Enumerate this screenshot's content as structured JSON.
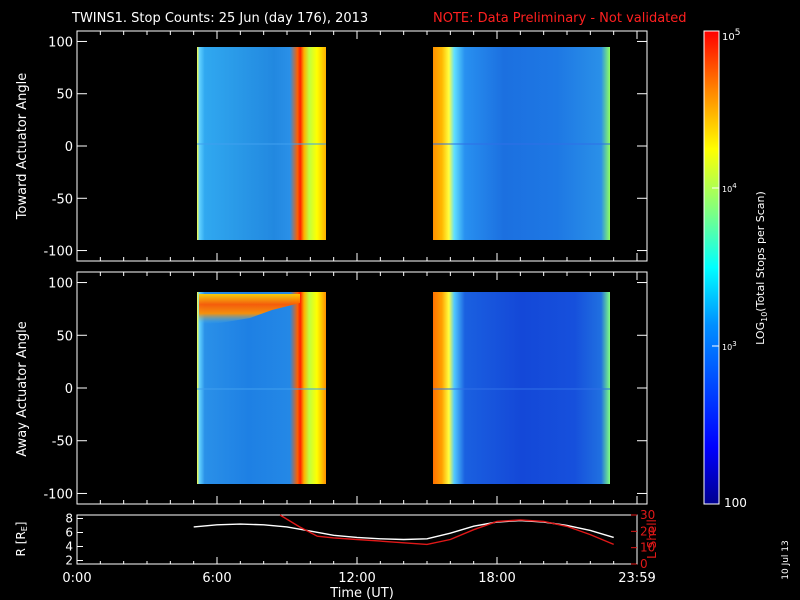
{
  "title": "TWINS1. Stop Counts: 25 Jun (day 176), 2013",
  "note": "NOTE: Data Preliminary - Not validated",
  "stamp": "10 Jul 13",
  "colors": {
    "note": "#ff2020",
    "l_shell": "#e01818",
    "r_line": "#ffffff",
    "background": "#000000"
  },
  "chart_data": [
    {
      "type": "heatmap",
      "ylabel": "Toward Actuator Angle",
      "ylim": [
        -110,
        110
      ],
      "yticks": [
        100,
        50,
        0,
        -50,
        -100
      ],
      "x_range_hours": [
        0,
        24
      ],
      "data_intervals_hours": [
        [
          5.0,
          10.3
        ],
        [
          15.0,
          23.0
        ]
      ],
      "angle_range_deg": [
        -90,
        90
      ]
    },
    {
      "type": "heatmap",
      "ylabel": "Away Actuator Angle",
      "ylim": [
        -110,
        110
      ],
      "yticks": [
        100,
        50,
        0,
        -50,
        -100
      ],
      "x_range_hours": [
        0,
        24
      ],
      "data_intervals_hours": [
        [
          5.0,
          10.3
        ],
        [
          15.0,
          23.0
        ]
      ],
      "angle_range_deg": [
        -90,
        90
      ]
    },
    {
      "type": "line",
      "xlabel": "Time (UT)",
      "x_ticks": [
        "0:00",
        "6:00",
        "12:00",
        "18:00",
        "23:59"
      ],
      "left_axis": {
        "label": "R [R",
        "label_sub": "E",
        "label_end": "]",
        "ylim": [
          1.5,
          8.5
        ],
        "ticks": [
          "8",
          "6",
          "4",
          "2"
        ]
      },
      "right_axis": {
        "label": "L Shell",
        "ylim": [
          0,
          30
        ],
        "ticks": [
          "30",
          "20",
          "10",
          "0"
        ]
      },
      "series": [
        {
          "axis": "left",
          "color": "#ffffff",
          "x": [
            5.0,
            6.0,
            7.0,
            8.0,
            9.0,
            10.0,
            10.5,
            11.0,
            12.0,
            13.0,
            14.0,
            15.0,
            16.0,
            17.0,
            18.0,
            19.0,
            20.0,
            21.0,
            22.0,
            23.0
          ],
          "y": [
            6.8,
            7.1,
            7.2,
            7.1,
            6.8,
            6.2,
            5.9,
            5.6,
            5.3,
            5.1,
            5.0,
            5.1,
            5.9,
            6.9,
            7.5,
            7.7,
            7.5,
            7.0,
            6.3,
            5.3
          ]
        },
        {
          "axis": "right",
          "color": "#e01818",
          "x": [
            8.7,
            9.5,
            10.3,
            11.0,
            12.0,
            13.0,
            14.0,
            15.0,
            16.0,
            17.0,
            18.0,
            19.0,
            20.0,
            21.0,
            22.0,
            23.0
          ],
          "y": [
            30,
            23,
            17,
            16,
            15,
            14,
            13,
            12,
            15,
            21,
            26,
            27,
            26,
            23,
            18,
            12
          ]
        }
      ]
    }
  ],
  "colorbar": {
    "label_prefix": "LOG",
    "label_sub": "10",
    "label_rest": "(Total Stops per Scan)",
    "tick_base": "10",
    "tick_exp_top": "5",
    "tick_exp_mid": "4",
    "tick_exp_low": "3",
    "tick_bottom": "100",
    "range": [
      100,
      100000
    ]
  }
}
